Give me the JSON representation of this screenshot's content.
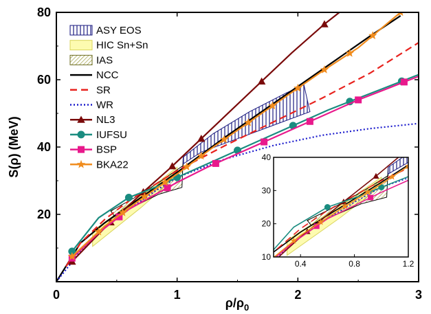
{
  "chart_data": {
    "type": "line",
    "xlabel_base": "ρ/ρ",
    "xlabel_sub": "0",
    "ylabel": "S(ρ) (MeV)",
    "xlim": [
      0,
      3
    ],
    "ylim": [
      0,
      80
    ],
    "xticks": [
      "0",
      "1",
      "2",
      "3"
    ],
    "yticks": [
      "20",
      "40",
      "60",
      "80"
    ],
    "legend_position": "top-left",
    "legend": [
      {
        "label": "ASY EOS",
        "kind": "band",
        "fill": "#ffffff",
        "stroke": "#1a1a80",
        "pattern": "vlines",
        "pattern_color": "#1a1a80"
      },
      {
        "label": "HIC Sn+Sn",
        "kind": "band",
        "fill": "#fdfbb0",
        "stroke": "#d9d45a",
        "pattern": "none"
      },
      {
        "label": "IAS",
        "kind": "band",
        "fill": "#ffffff",
        "stroke": "#6b6b20",
        "pattern": "hatch",
        "pattern_color": "#8c8c20"
      },
      {
        "label": "NCC",
        "kind": "line",
        "color": "#000000",
        "dash": "solid",
        "marker": "none"
      },
      {
        "label": "SR",
        "kind": "line",
        "color": "#e8221e",
        "dash": "dashed",
        "marker": "none"
      },
      {
        "label": "WR",
        "kind": "line",
        "color": "#1a1acc",
        "dash": "dotted",
        "marker": "none"
      },
      {
        "label": "NL3",
        "kind": "line",
        "color": "#7a0a0a",
        "dash": "solid",
        "marker": "triangle"
      },
      {
        "label": "IUFSU",
        "kind": "line",
        "color": "#1a8c80",
        "dash": "solid",
        "marker": "circle"
      },
      {
        "label": "BSP",
        "kind": "line",
        "color": "#e8198c",
        "dash": "solid",
        "marker": "square"
      },
      {
        "label": "BKA22",
        "kind": "line",
        "color": "#f08c1e",
        "dash": "solid",
        "marker": "star"
      }
    ],
    "series": [
      {
        "name": "NCC",
        "color": "#000000",
        "dash": "solid",
        "marker": "none",
        "x": [
          0,
          0.2,
          0.4,
          0.6,
          0.8,
          1.0,
          1.4,
          1.8,
          2.2,
          2.6,
          2.85
        ],
        "y": [
          0,
          11.5,
          17.5,
          22.5,
          27.5,
          32.5,
          43,
          53,
          63,
          73,
          79
        ]
      },
      {
        "name": "SR",
        "color": "#e8221e",
        "dash": "dashed",
        "marker": "none",
        "x": [
          0.08,
          0.2,
          0.4,
          0.6,
          0.8,
          1.0,
          1.4,
          1.8,
          2.2,
          2.6,
          3.0
        ],
        "y": [
          4.5,
          11.5,
          18.5,
          24,
          28.5,
          33,
          40.5,
          47.5,
          54.5,
          62,
          71
        ]
      },
      {
        "name": "WR",
        "color": "#1a1acc",
        "dash": "dotted",
        "marker": "none",
        "x": [
          0,
          0.2,
          0.4,
          0.6,
          0.8,
          1.0,
          1.4,
          1.8,
          2.2,
          2.6,
          3.0
        ],
        "y": [
          0,
          9,
          16,
          21.5,
          26.5,
          31,
          36.5,
          40.5,
          43.5,
          45.5,
          47
        ]
      },
      {
        "name": "NL3",
        "color": "#7a0a0a",
        "dash": "solid",
        "marker": "triangle",
        "x": [
          0.13,
          0.4,
          0.7,
          0.95,
          1.2,
          1.45,
          1.7,
          1.95,
          2.22,
          2.45
        ],
        "y": [
          6,
          16,
          26,
          34,
          42.5,
          51,
          59.5,
          68,
          76.5,
          83
        ],
        "markers": [
          0.13,
          0.45,
          0.72,
          0.96,
          1.2,
          1.7,
          2.22
        ]
      },
      {
        "name": "IUFSU",
        "color": "#1a8c80",
        "dash": "solid",
        "marker": "circle",
        "x": [
          0.13,
          0.35,
          0.6,
          0.85,
          1.0,
          1.25,
          1.5,
          1.75,
          2.0,
          2.25,
          2.5,
          2.75,
          3.0
        ],
        "y": [
          9,
          19,
          25,
          28.5,
          31,
          35,
          39,
          43,
          47,
          51,
          54.5,
          58,
          61.5
        ],
        "markers": [
          0.13,
          0.6,
          1.0,
          1.5,
          1.96,
          2.43,
          2.86
        ]
      },
      {
        "name": "BSP",
        "color": "#e8198c",
        "dash": "solid",
        "marker": "square",
        "x": [
          0.13,
          0.35,
          0.6,
          0.85,
          1.0,
          1.25,
          1.5,
          1.75,
          2.0,
          2.25,
          2.5,
          2.75,
          3.0
        ],
        "y": [
          7,
          14.5,
          21.5,
          26.5,
          29.5,
          34,
          38,
          42,
          46,
          50,
          54,
          57.5,
          61
        ],
        "markers": [
          0.13,
          0.52,
          0.92,
          1.32,
          1.72,
          2.1,
          2.5,
          2.88
        ]
      },
      {
        "name": "BKA22",
        "color": "#f08c1e",
        "dash": "solid",
        "marker": "star",
        "x": [
          0.13,
          0.4,
          0.7,
          1.0,
          1.3,
          1.6,
          1.9,
          2.2,
          2.5,
          2.85
        ],
        "y": [
          7.5,
          16.5,
          24.5,
          32,
          40,
          47.5,
          55,
          62.5,
          69.5,
          80
        ],
        "markers": [
          0.13,
          0.35,
          0.55,
          0.73,
          0.9,
          1.08,
          1.2,
          1.39,
          1.59,
          1.79,
          2.0,
          2.22,
          2.43,
          2.62,
          2.85
        ]
      }
    ],
    "bands": [
      {
        "name": "HIC Sn+Sn",
        "fill": "#fdfbb0",
        "stroke": "#d9d45a",
        "points": [
          [
            0.3,
            10.5
          ],
          [
            0.7,
            22
          ],
          [
            1.0,
            31.5
          ],
          [
            1.0,
            34
          ],
          [
            0.75,
            27
          ],
          [
            0.45,
            19
          ],
          [
            0.3,
            15
          ]
        ]
      },
      {
        "name": "IAS",
        "fill": "#ffffff",
        "stroke": "#000000",
        "pattern": "hatch",
        "points": [
          [
            0.45,
            21
          ],
          [
            0.65,
            25
          ],
          [
            0.85,
            29.5
          ],
          [
            1.05,
            34.5
          ],
          [
            1.05,
            37
          ],
          [
            1.04,
            28
          ],
          [
            0.85,
            26
          ],
          [
            0.65,
            22.5
          ],
          [
            0.48,
            19.5
          ]
        ]
      },
      {
        "name": "ASY EOS",
        "fill": "#ffffff",
        "stroke": "#1a1a80",
        "pattern": "vlines",
        "points": [
          [
            1.05,
            37
          ],
          [
            1.3,
            44
          ],
          [
            1.6,
            50.5
          ],
          [
            1.9,
            56
          ],
          [
            2.05,
            58.5
          ],
          [
            2.1,
            50.5
          ],
          [
            1.8,
            46.5
          ],
          [
            1.5,
            42.5
          ],
          [
            1.2,
            38.5
          ],
          [
            1.05,
            35
          ]
        ]
      }
    ],
    "inset": {
      "xlim": [
        0.2,
        1.2
      ],
      "ylim": [
        10,
        40
      ],
      "xticks": [
        "0.4",
        "0.8",
        "1.2"
      ],
      "yticks": [
        "10",
        "20",
        "30",
        "40"
      ]
    }
  }
}
